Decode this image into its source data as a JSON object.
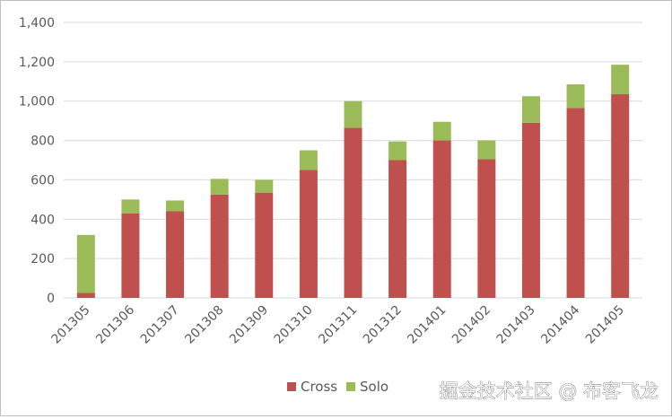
{
  "chart_data": {
    "type": "bar",
    "stacked": true,
    "categories": [
      "201305",
      "201306",
      "201307",
      "201308",
      "201309",
      "201310",
      "201311",
      "201312",
      "201401",
      "201402",
      "201403",
      "201404",
      "201405"
    ],
    "series": [
      {
        "name": "Cross",
        "color": "#c0504d",
        "values": [
          25,
          430,
          440,
          525,
          535,
          650,
          865,
          700,
          800,
          705,
          890,
          965,
          1035
        ]
      },
      {
        "name": "Solo",
        "color": "#9bbb59",
        "values": [
          295,
          70,
          55,
          80,
          65,
          100,
          135,
          95,
          95,
          95,
          135,
          120,
          150
        ]
      }
    ],
    "ylim": [
      0,
      1400
    ],
    "yticks": [
      0,
      200,
      400,
      600,
      800,
      1000,
      1200,
      1400
    ],
    "ytick_labels": [
      "0",
      "200",
      "400",
      "600",
      "800",
      "1,000",
      "1,200",
      "1,400"
    ],
    "grid": true,
    "legend": "bottom-right",
    "title": "",
    "xlabel": "",
    "ylabel": ""
  },
  "watermark": "掘金技术社区 @ 布客飞龙"
}
